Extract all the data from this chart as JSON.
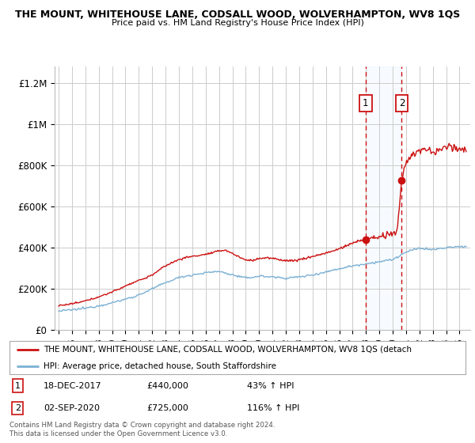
{
  "title": "THE MOUNT, WHITEHOUSE LANE, CODSALL WOOD, WOLVERHAMPTON, WV8 1QS",
  "subtitle": "Price paid vs. HM Land Registry's House Price Index (HPI)",
  "ylabel_ticks": [
    "£0",
    "£200K",
    "£400K",
    "£600K",
    "£800K",
    "£1M",
    "£1.2M"
  ],
  "ytick_vals": [
    0,
    200000,
    400000,
    600000,
    800000,
    1000000,
    1200000
  ],
  "ylim": [
    0,
    1280000
  ],
  "xlim_start": 1994.7,
  "xlim_end": 2025.8,
  "hpi_color": "#7ab0d4",
  "price_color": "#cc1111",
  "marker1_date": 2017.96,
  "marker1_price": 440000,
  "marker2_date": 2020.67,
  "marker2_price": 725000,
  "legend_line1": "THE MOUNT, WHITEHOUSE LANE, CODSALL WOOD, WOLVERHAMPTON, WV8 1QS (detach",
  "legend_line2": "HPI: Average price, detached house, South Staffordshire",
  "footer": "Contains HM Land Registry data © Crown copyright and database right 2024.\nThis data is licensed under the Open Government Licence v3.0.",
  "background_color": "#ffffff",
  "grid_color": "#cccccc",
  "shaded_region_color": "#ddeeff",
  "box1_edge": "#cc1111",
  "box2_edge": "#cc1111"
}
